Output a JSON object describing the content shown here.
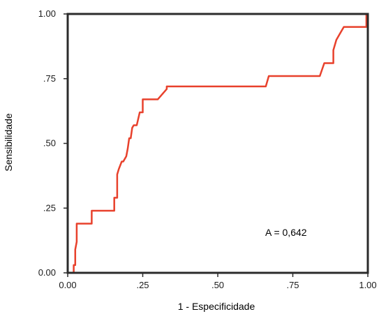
{
  "chart_data": {
    "type": "line",
    "xlabel": "1 - Especificidade",
    "ylabel": "Sensibilidade",
    "xlim": [
      0,
      1
    ],
    "ylim": [
      0,
      1
    ],
    "x_tick_labels": [
      "0.00",
      ".25",
      ".50",
      ".75",
      "1.00"
    ],
    "y_tick_labels": [
      "0.00",
      ".25",
      ".50",
      ".75",
      "1.00"
    ],
    "grid": false,
    "annotation": "A = 0,642",
    "series": [
      {
        "line_color": "#e8412c",
        "x": [
          0.02,
          0.02,
          0.025,
          0.025,
          0.03,
          0.03,
          0.04,
          0.08,
          0.08,
          0.155,
          0.155,
          0.165,
          0.165,
          0.17,
          0.18,
          0.185,
          0.195,
          0.2,
          0.205,
          0.21,
          0.215,
          0.22,
          0.23,
          0.24,
          0.245,
          0.25,
          0.25,
          0.3,
          0.33,
          0.33,
          0.65,
          0.66,
          0.67,
          0.67,
          0.84,
          0.855,
          0.885,
          0.885,
          0.895,
          0.91,
          0.92,
          0.92,
          0.995,
          0.995,
          1.0
        ],
        "y": [
          0.0,
          0.03,
          0.03,
          0.09,
          0.12,
          0.19,
          0.19,
          0.19,
          0.24,
          0.24,
          0.29,
          0.29,
          0.38,
          0.4,
          0.43,
          0.43,
          0.45,
          0.48,
          0.52,
          0.52,
          0.56,
          0.57,
          0.57,
          0.62,
          0.62,
          0.62,
          0.67,
          0.67,
          0.71,
          0.72,
          0.72,
          0.72,
          0.76,
          0.76,
          0.76,
          0.81,
          0.81,
          0.86,
          0.9,
          0.93,
          0.95,
          0.95,
          0.95,
          1.0,
          1.0
        ]
      }
    ]
  }
}
